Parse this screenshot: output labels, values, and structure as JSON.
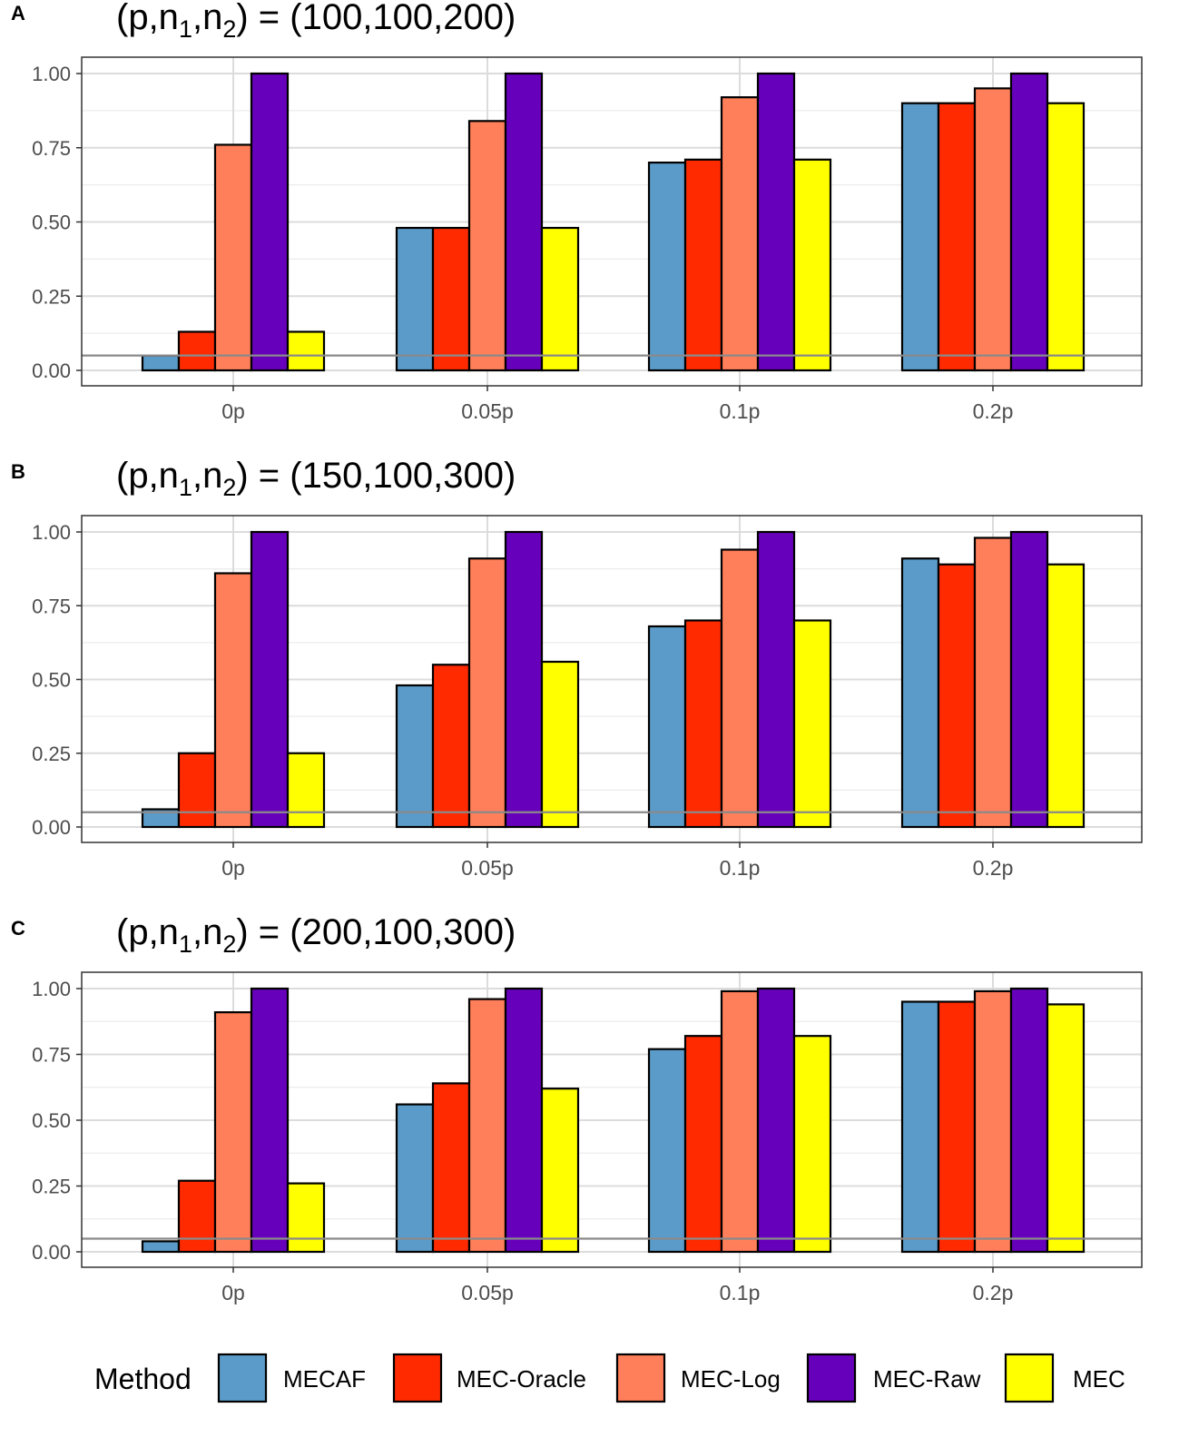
{
  "legend": {
    "title": "Method",
    "items": [
      {
        "label": "MECAF",
        "color": "#5B9BC9"
      },
      {
        "label": "MEC-Oracle",
        "color": "#FF2A00"
      },
      {
        "label": "MEC-Log",
        "color": "#FF7F5A"
      },
      {
        "label": "MEC-Raw",
        "color": "#6600BB"
      },
      {
        "label": "MEC",
        "color": "#FFFF00"
      }
    ]
  },
  "chart_data": [
    {
      "type": "bar",
      "panel": "A",
      "title_prefix": "(p,n",
      "title_sub1": "1",
      "title_mid": ",n",
      "title_sub2": "2",
      "title_value": ") = (100,100,200)",
      "categories": [
        "0p",
        "0.05p",
        "0.1p",
        "0.2p"
      ],
      "ylim": [
        0,
        1
      ],
      "yticks": [
        "0.00",
        "0.25",
        "0.50",
        "0.75",
        "1.00"
      ],
      "reference_line": 0.05,
      "series": [
        {
          "name": "MECAF",
          "values": [
            0.05,
            0.48,
            0.7,
            0.9
          ]
        },
        {
          "name": "MEC-Oracle",
          "values": [
            0.13,
            0.48,
            0.71,
            0.9
          ]
        },
        {
          "name": "MEC-Log",
          "values": [
            0.76,
            0.84,
            0.92,
            0.95
          ]
        },
        {
          "name": "MEC-Raw",
          "values": [
            1.0,
            1.0,
            1.0,
            1.0
          ]
        },
        {
          "name": "MEC",
          "values": [
            0.13,
            0.48,
            0.71,
            0.9
          ]
        }
      ]
    },
    {
      "type": "bar",
      "panel": "B",
      "title_prefix": "(p,n",
      "title_sub1": "1",
      "title_mid": ",n",
      "title_sub2": "2",
      "title_value": ") = (150,100,300)",
      "categories": [
        "0p",
        "0.05p",
        "0.1p",
        "0.2p"
      ],
      "ylim": [
        0,
        1
      ],
      "yticks": [
        "0.00",
        "0.25",
        "0.50",
        "0.75",
        "1.00"
      ],
      "reference_line": 0.05,
      "series": [
        {
          "name": "MECAF",
          "values": [
            0.06,
            0.48,
            0.68,
            0.91
          ]
        },
        {
          "name": "MEC-Oracle",
          "values": [
            0.25,
            0.55,
            0.7,
            0.89
          ]
        },
        {
          "name": "MEC-Log",
          "values": [
            0.86,
            0.91,
            0.94,
            0.98
          ]
        },
        {
          "name": "MEC-Raw",
          "values": [
            1.0,
            1.0,
            1.0,
            1.0
          ]
        },
        {
          "name": "MEC",
          "values": [
            0.25,
            0.56,
            0.7,
            0.89
          ]
        }
      ]
    },
    {
      "type": "bar",
      "panel": "C",
      "title_prefix": "(p,n",
      "title_sub1": "1",
      "title_mid": ",n",
      "title_sub2": "2",
      "title_value": ") = (200,100,300)",
      "categories": [
        "0p",
        "0.05p",
        "0.1p",
        "0.2p"
      ],
      "ylim": [
        0,
        1
      ],
      "yticks": [
        "0.00",
        "0.25",
        "0.50",
        "0.75",
        "1.00"
      ],
      "reference_line": 0.05,
      "series": [
        {
          "name": "MECAF",
          "values": [
            0.04,
            0.56,
            0.77,
            0.95
          ]
        },
        {
          "name": "MEC-Oracle",
          "values": [
            0.27,
            0.64,
            0.82,
            0.95
          ]
        },
        {
          "name": "MEC-Log",
          "values": [
            0.91,
            0.96,
            0.99,
            0.99
          ]
        },
        {
          "name": "MEC-Raw",
          "values": [
            1.0,
            1.0,
            1.0,
            1.0
          ]
        },
        {
          "name": "MEC",
          "values": [
            0.26,
            0.62,
            0.82,
            0.94
          ]
        }
      ]
    }
  ]
}
